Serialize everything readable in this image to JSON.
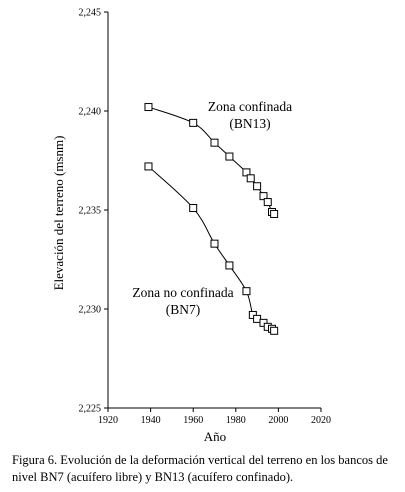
{
  "chart_data": {
    "type": "scatter",
    "xlabel": "Año",
    "ylabel": "Elevación del terreno (msnm)",
    "xlim": [
      1920,
      2020
    ],
    "ylim": [
      2225,
      2245
    ],
    "xticks": [
      "1920",
      "1940",
      "1960",
      "1980",
      "2000",
      "2020"
    ],
    "yticks": [
      "2,225",
      "2,230",
      "2,235",
      "2,240",
      "2,245"
    ],
    "grid": false,
    "series": [
      {
        "name": "BN13",
        "label_lines": [
          "Zona confinada",
          "(BN13)"
        ],
        "points": [
          {
            "x": 1939,
            "y": 2240.2
          },
          {
            "x": 1960,
            "y": 2239.4
          },
          {
            "x": 1970,
            "y": 2238.4
          },
          {
            "x": 1977,
            "y": 2237.7
          },
          {
            "x": 1985,
            "y": 2236.9
          },
          {
            "x": 1987,
            "y": 2236.6
          },
          {
            "x": 1990,
            "y": 2236.2
          },
          {
            "x": 1993,
            "y": 2235.7
          },
          {
            "x": 1995,
            "y": 2235.4
          },
          {
            "x": 1997,
            "y": 2234.9
          },
          {
            "x": 1998,
            "y": 2234.8
          }
        ]
      },
      {
        "name": "BN7",
        "label_lines": [
          "Zona no confinada",
          "(BN7)"
        ],
        "points": [
          {
            "x": 1939,
            "y": 2237.2
          },
          {
            "x": 1960,
            "y": 2235.1
          },
          {
            "x": 1970,
            "y": 2233.3
          },
          {
            "x": 1977,
            "y": 2232.2
          },
          {
            "x": 1985,
            "y": 2230.9
          },
          {
            "x": 1988,
            "y": 2229.7
          },
          {
            "x": 1990,
            "y": 2229.5
          },
          {
            "x": 1993,
            "y": 2229.3
          },
          {
            "x": 1995,
            "y": 2229.1
          },
          {
            "x": 1997,
            "y": 2229.0
          },
          {
            "x": 1998,
            "y": 2228.9
          }
        ]
      }
    ]
  },
  "caption": "Figura 6. Evolución de la deformación vertical del terreno en los bancos de nivel BN7 (acuífero libre) y BN13 (acuífero confinado)."
}
